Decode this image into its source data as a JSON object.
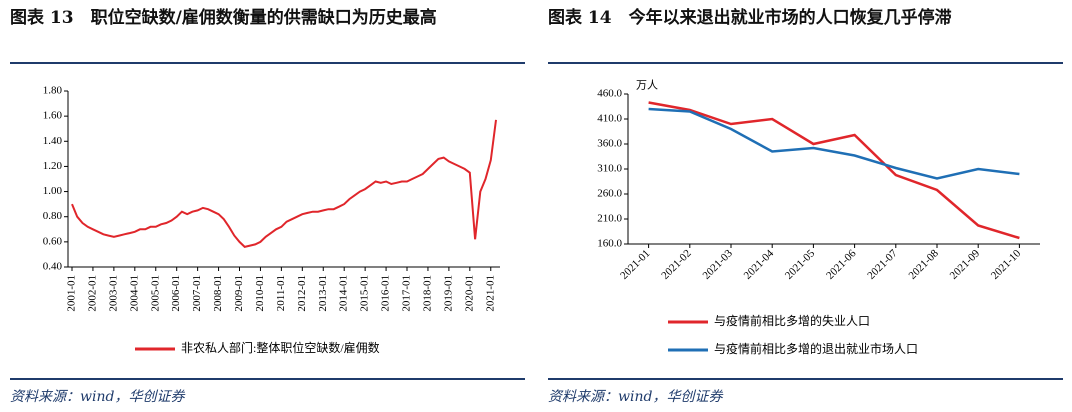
{
  "chart_data": [
    {
      "type": "line",
      "title": "图表 13　职位空缺数/雇佣数衡量的供需缺口为历史最高",
      "source": "资料来源：wind，华创证券",
      "categories": [
        "2001-01",
        null,
        null,
        null,
        "2002-01",
        null,
        null,
        null,
        "2003-01",
        null,
        null,
        null,
        "2004-01",
        null,
        null,
        null,
        "2005-01",
        null,
        null,
        null,
        "2006-01",
        null,
        null,
        null,
        "2007-01",
        null,
        null,
        null,
        "2008-01",
        null,
        null,
        null,
        "2009-01",
        null,
        null,
        null,
        "2010-01",
        null,
        null,
        null,
        "2011-01",
        null,
        null,
        null,
        "2012-01",
        null,
        null,
        null,
        "2013-01",
        null,
        null,
        null,
        "2014-01",
        null,
        null,
        null,
        "2015-01",
        null,
        null,
        null,
        "2016-01",
        null,
        null,
        null,
        "2017-01",
        null,
        null,
        null,
        "2018-01",
        null,
        null,
        null,
        "2019-01",
        null,
        null,
        null,
        "2020-01",
        null,
        null,
        null,
        "2021-01",
        null
      ],
      "series": [
        {
          "name": "非农私人部门:整体职位空缺数/雇佣数",
          "color": "#e0262b",
          "values": [
            0.9,
            0.8,
            0.75,
            0.72,
            0.7,
            0.68,
            0.66,
            0.65,
            0.64,
            0.65,
            0.66,
            0.67,
            0.68,
            0.7,
            0.7,
            0.72,
            0.72,
            0.74,
            0.75,
            0.77,
            0.8,
            0.84,
            0.82,
            0.84,
            0.85,
            0.87,
            0.86,
            0.84,
            0.82,
            0.78,
            0.72,
            0.65,
            0.6,
            0.56,
            0.57,
            0.58,
            0.6,
            0.64,
            0.67,
            0.7,
            0.72,
            0.76,
            0.78,
            0.8,
            0.82,
            0.83,
            0.84,
            0.84,
            0.85,
            0.86,
            0.86,
            0.88,
            0.9,
            0.94,
            0.97,
            1.0,
            1.02,
            1.05,
            1.08,
            1.07,
            1.08,
            1.06,
            1.07,
            1.08,
            1.08,
            1.1,
            1.12,
            1.14,
            1.18,
            1.22,
            1.26,
            1.27,
            1.24,
            1.22,
            1.2,
            1.18,
            1.15,
            0.62,
            1.0,
            1.1,
            1.25,
            1.57
          ]
        }
      ],
      "ylim": [
        0.4,
        1.8
      ],
      "yticks": [
        {
          "value": 0.4,
          "label": "0.40"
        },
        {
          "value": 0.6,
          "label": "0.60"
        },
        {
          "value": 0.8,
          "label": "0.80"
        },
        {
          "value": 1.0,
          "label": "1.00"
        },
        {
          "value": 1.2,
          "label": "1.20"
        },
        {
          "value": 1.4,
          "label": "1.40"
        },
        {
          "value": 1.6,
          "label": "1.60"
        },
        {
          "value": 1.8,
          "label": "1.80"
        }
      ],
      "legend": "bottom"
    },
    {
      "type": "line",
      "title": "图表 14　今年以来退出就业市场的人口恢复几乎停滞",
      "source": "资料来源：wind，华创证券",
      "y_label": "万人",
      "categories": [
        "2021-01",
        "2021-02",
        "2021-03",
        "2021-04",
        "2021-05",
        "2021-06",
        "2021-07",
        "2021-08",
        "2021-09",
        "2021-10"
      ],
      "series": [
        {
          "name": "与疫情前相比多增的失业人口",
          "color": "#e0262b",
          "values": [
            443,
            428,
            400,
            410,
            360,
            378,
            298,
            268,
            197,
            172
          ]
        },
        {
          "name": "与疫情前相比多增的退出就业市场人口",
          "color": "#1f6fb5",
          "values": [
            430,
            425,
            390,
            345,
            352,
            337,
            312,
            291,
            310,
            300
          ]
        }
      ],
      "ylim": [
        160,
        460
      ],
      "yticks": [
        {
          "value": 160,
          "label": "160.0"
        },
        {
          "value": 210,
          "label": "210.0"
        },
        {
          "value": 260,
          "label": "260.0"
        },
        {
          "value": 310,
          "label": "310.0"
        },
        {
          "value": 360,
          "label": "360.0"
        },
        {
          "value": 410,
          "label": "410.0"
        },
        {
          "value": 460,
          "label": "460.0"
        }
      ],
      "legend": "bottom"
    }
  ]
}
